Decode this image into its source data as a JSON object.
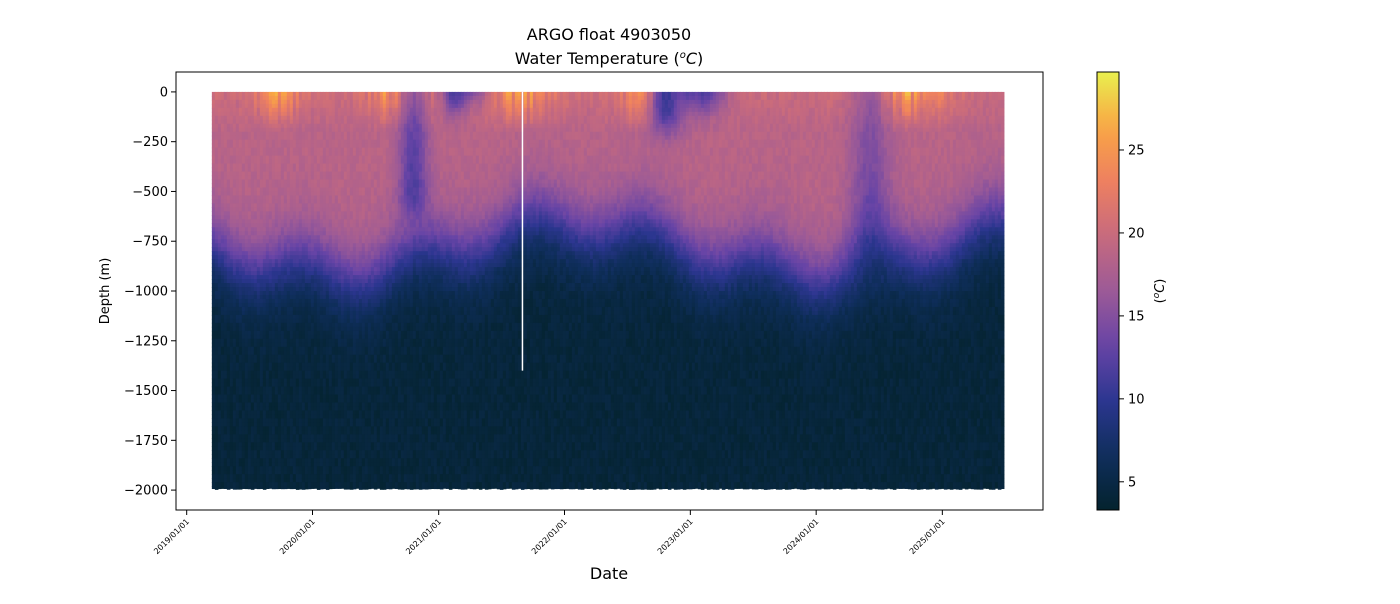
{
  "chart_data": {
    "type": "heatmap",
    "title": "ARGO float 4903050",
    "subtitle_prefix": "Water Temperature (",
    "subtitle_unit_base": "o",
    "subtitle_unit_sym": "C",
    "subtitle_suffix": ")",
    "xlabel": "Date",
    "ylabel": "Depth (m)",
    "colorbar_label_prefix": "(",
    "colorbar_label_base": "o",
    "colorbar_label_sym": "C",
    "colorbar_label_suffix": ")",
    "x_range": [
      "2018-12-01",
      "2025-10-20"
    ],
    "x_data_range": [
      "2019-03-15",
      "2025-06-20"
    ],
    "ylim": [
      -2100,
      100
    ],
    "y_ticks": [
      0,
      -250,
      -500,
      -750,
      -1000,
      -1250,
      -1500,
      -1750,
      -2000
    ],
    "y_tick_labels": [
      "0",
      "−250",
      "−500",
      "−750",
      "−1000",
      "−1250",
      "−1500",
      "−1750",
      "−2000"
    ],
    "x_ticks": [
      "2019-01-01",
      "2020-01-01",
      "2021-01-01",
      "2022-01-01",
      "2023-01-01",
      "2024-01-01",
      "2025-01-01"
    ],
    "x_tick_labels": [
      "2019/01/01",
      "2020/01/01",
      "2021/01/01",
      "2022/01/01",
      "2023/01/01",
      "2024/01/01",
      "2025/01/01"
    ],
    "colorbar_range": [
      3.3,
      29.7
    ],
    "colorbar_ticks": [
      5,
      10,
      15,
      20,
      25
    ],
    "colorbar_tick_labels": [
      "5",
      "10",
      "15",
      "20",
      "25"
    ],
    "colormap": "thermal",
    "colormap_stops": [
      "#04232e",
      "#0f2e5c",
      "#2c3690",
      "#6744a6",
      "#9c5a97",
      "#c76a7e",
      "#ee8060",
      "#f9a644",
      "#e9f04e"
    ],
    "depth_max": -1990,
    "profiles_gap": "2021-09-01",
    "cold_intrusions": [
      {
        "date": "2021-02-10",
        "width_days": 25,
        "depth_top": -80,
        "strength": 1.0
      },
      {
        "date": "2021-04-01",
        "width_days": 40,
        "depth_top": -20,
        "strength": 1.0
      },
      {
        "date": "2022-10-20",
        "width_days": 35,
        "depth_top": -180,
        "strength": 1.0
      },
      {
        "date": "2023-02-05",
        "width_days": 45,
        "depth_top": -80,
        "strength": 1.0
      },
      {
        "date": "2022-12-15",
        "width_days": 20,
        "depth_top": -20,
        "strength": 0.8
      },
      {
        "date": "2020-10-15",
        "width_days": 30,
        "depth_top": -600,
        "strength": 0.6
      },
      {
        "date": "2024-06-01",
        "width_days": 40,
        "depth_top": -900,
        "strength": 0.4
      }
    ],
    "warm_surface_periods": [
      {
        "date": "2020-09-01",
        "width_days": 60
      },
      {
        "date": "2021-08-15",
        "width_days": 70
      },
      {
        "date": "2022-09-01",
        "width_days": 60
      },
      {
        "date": "2024-10-01",
        "width_days": 70
      },
      {
        "date": "2019-09-15",
        "width_days": 50
      }
    ]
  }
}
